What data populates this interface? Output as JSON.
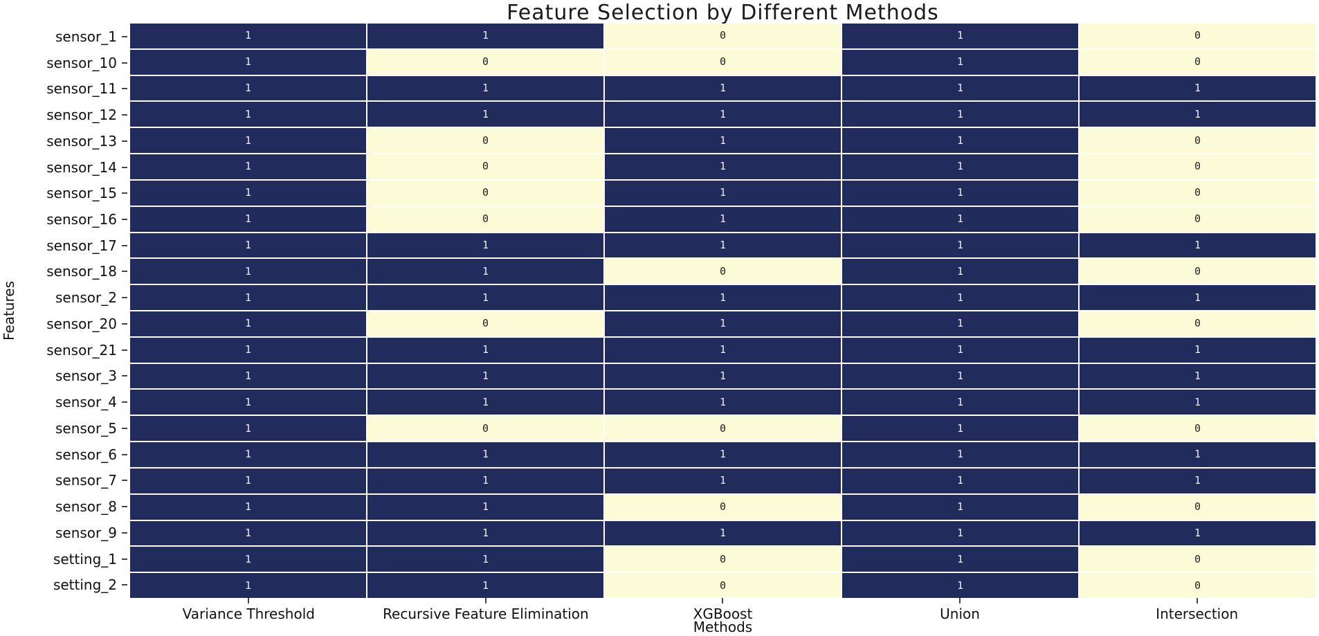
{
  "figure": {
    "background": "#ffffff"
  },
  "chart_data": {
    "type": "heatmap",
    "title": "Feature Selection by Different Methods",
    "xlabel": "Methods",
    "ylabel": "Features",
    "legend": "none",
    "annotated": true,
    "value_range": [
      0,
      1
    ],
    "columns": [
      "Variance Threshold",
      "Recursive Feature Elimination",
      "XGBoost",
      "Union",
      "Intersection"
    ],
    "rows": [
      "sensor_1",
      "sensor_10",
      "sensor_11",
      "sensor_12",
      "sensor_13",
      "sensor_14",
      "sensor_15",
      "sensor_16",
      "sensor_17",
      "sensor_18",
      "sensor_2",
      "sensor_20",
      "sensor_21",
      "sensor_3",
      "sensor_4",
      "sensor_5",
      "sensor_6",
      "sensor_7",
      "sensor_8",
      "sensor_9",
      "setting_1",
      "setting_2"
    ],
    "matrix": [
      [
        1,
        1,
        0,
        1,
        0
      ],
      [
        1,
        0,
        0,
        1,
        0
      ],
      [
        1,
        1,
        1,
        1,
        1
      ],
      [
        1,
        1,
        1,
        1,
        1
      ],
      [
        1,
        0,
        1,
        1,
        0
      ],
      [
        1,
        0,
        1,
        1,
        0
      ],
      [
        1,
        0,
        1,
        1,
        0
      ],
      [
        1,
        0,
        1,
        1,
        0
      ],
      [
        1,
        1,
        1,
        1,
        1
      ],
      [
        1,
        1,
        0,
        1,
        0
      ],
      [
        1,
        1,
        1,
        1,
        1
      ],
      [
        1,
        0,
        1,
        1,
        0
      ],
      [
        1,
        1,
        1,
        1,
        1
      ],
      [
        1,
        1,
        1,
        1,
        1
      ],
      [
        1,
        1,
        1,
        1,
        1
      ],
      [
        1,
        0,
        0,
        1,
        0
      ],
      [
        1,
        1,
        1,
        1,
        1
      ],
      [
        1,
        1,
        1,
        1,
        1
      ],
      [
        1,
        1,
        0,
        1,
        0
      ],
      [
        1,
        1,
        1,
        1,
        1
      ],
      [
        1,
        1,
        0,
        1,
        0
      ],
      [
        1,
        1,
        0,
        1,
        0
      ]
    ],
    "colors": {
      "cell_value_1": "#212b5c",
      "cell_value_0": "#fbfbd8",
      "text_on_value_1": "#ececec",
      "text_on_value_0": "#222222",
      "gridline": "#ffffff",
      "tick": "#444444",
      "label_text": "#111111"
    }
  }
}
